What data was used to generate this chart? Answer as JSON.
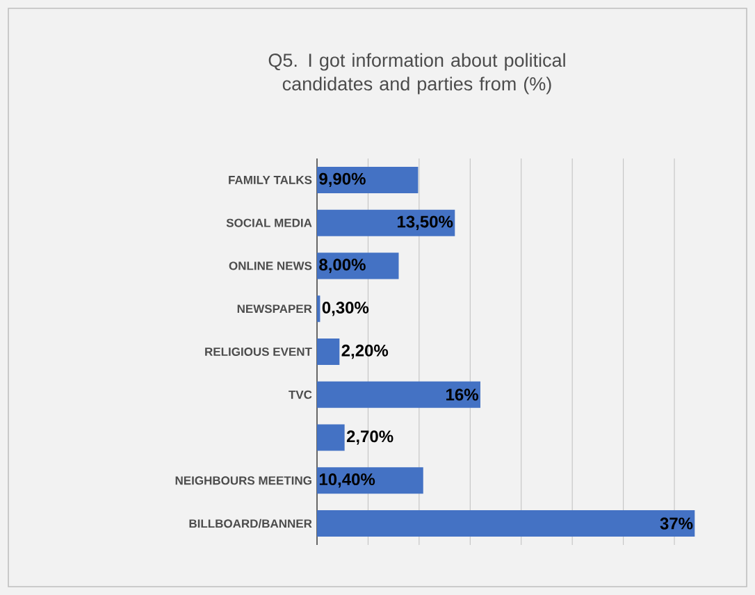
{
  "chart_data": {
    "type": "bar",
    "orientation": "horizontal",
    "title": "Q5. I got information about political candidates and parties from (%)",
    "categories": [
      "FAMILY TALKS",
      "SOCIAL MEDIA",
      "ONLINE NEWS",
      "NEWSPAPER",
      "RELIGIOUS EVENT",
      "TVC",
      null,
      "NEIGHBOURS MEETING",
      "BILLBOARD/BANNER"
    ],
    "values": [
      9.9,
      13.5,
      8.0,
      0.3,
      2.2,
      16,
      2.7,
      10.4,
      37
    ],
    "value_labels": [
      "9,90%",
      "13,50%",
      "8,00%",
      "0,30%",
      "2,20%",
      "16%",
      "2,70%",
      "10,40%",
      "37%"
    ],
    "color": "#4472c4",
    "grid": "x",
    "tick_labels": "y"
  }
}
